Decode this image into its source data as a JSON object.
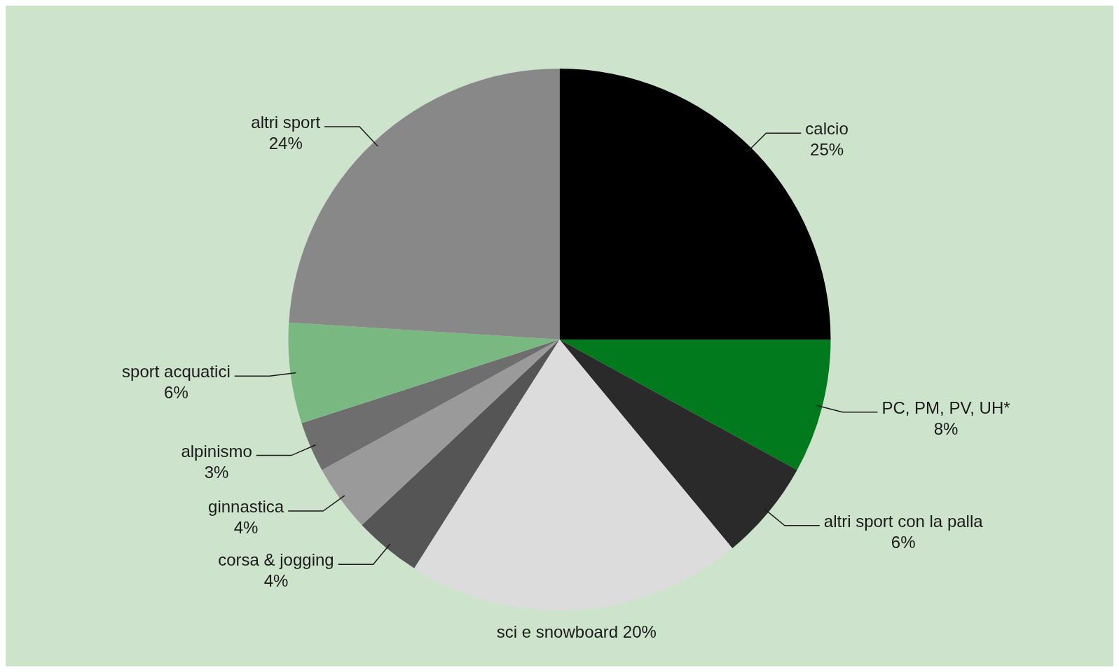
{
  "chart_data": {
    "type": "pie",
    "categories": [
      "calcio",
      "PC, PM, PV, UH*",
      "altri sport con la palla",
      "sci e snowboard",
      "corsa & jogging",
      "ginnastica",
      "alpinismo",
      "sport acquatici",
      "altri sport"
    ],
    "values": [
      25,
      8,
      6,
      20,
      4,
      4,
      3,
      6,
      24
    ],
    "value_labels": [
      "25%",
      "8%",
      "6%",
      "20%",
      "4%",
      "4%",
      "3%",
      "6%",
      "24%"
    ],
    "colors": [
      "#000000",
      "#007a1c",
      "#2a2a2a",
      "#dcdcdc",
      "#555555",
      "#9a9a9a",
      "#6e6e6e",
      "#7ab882",
      "#888888"
    ],
    "legend": false
  }
}
